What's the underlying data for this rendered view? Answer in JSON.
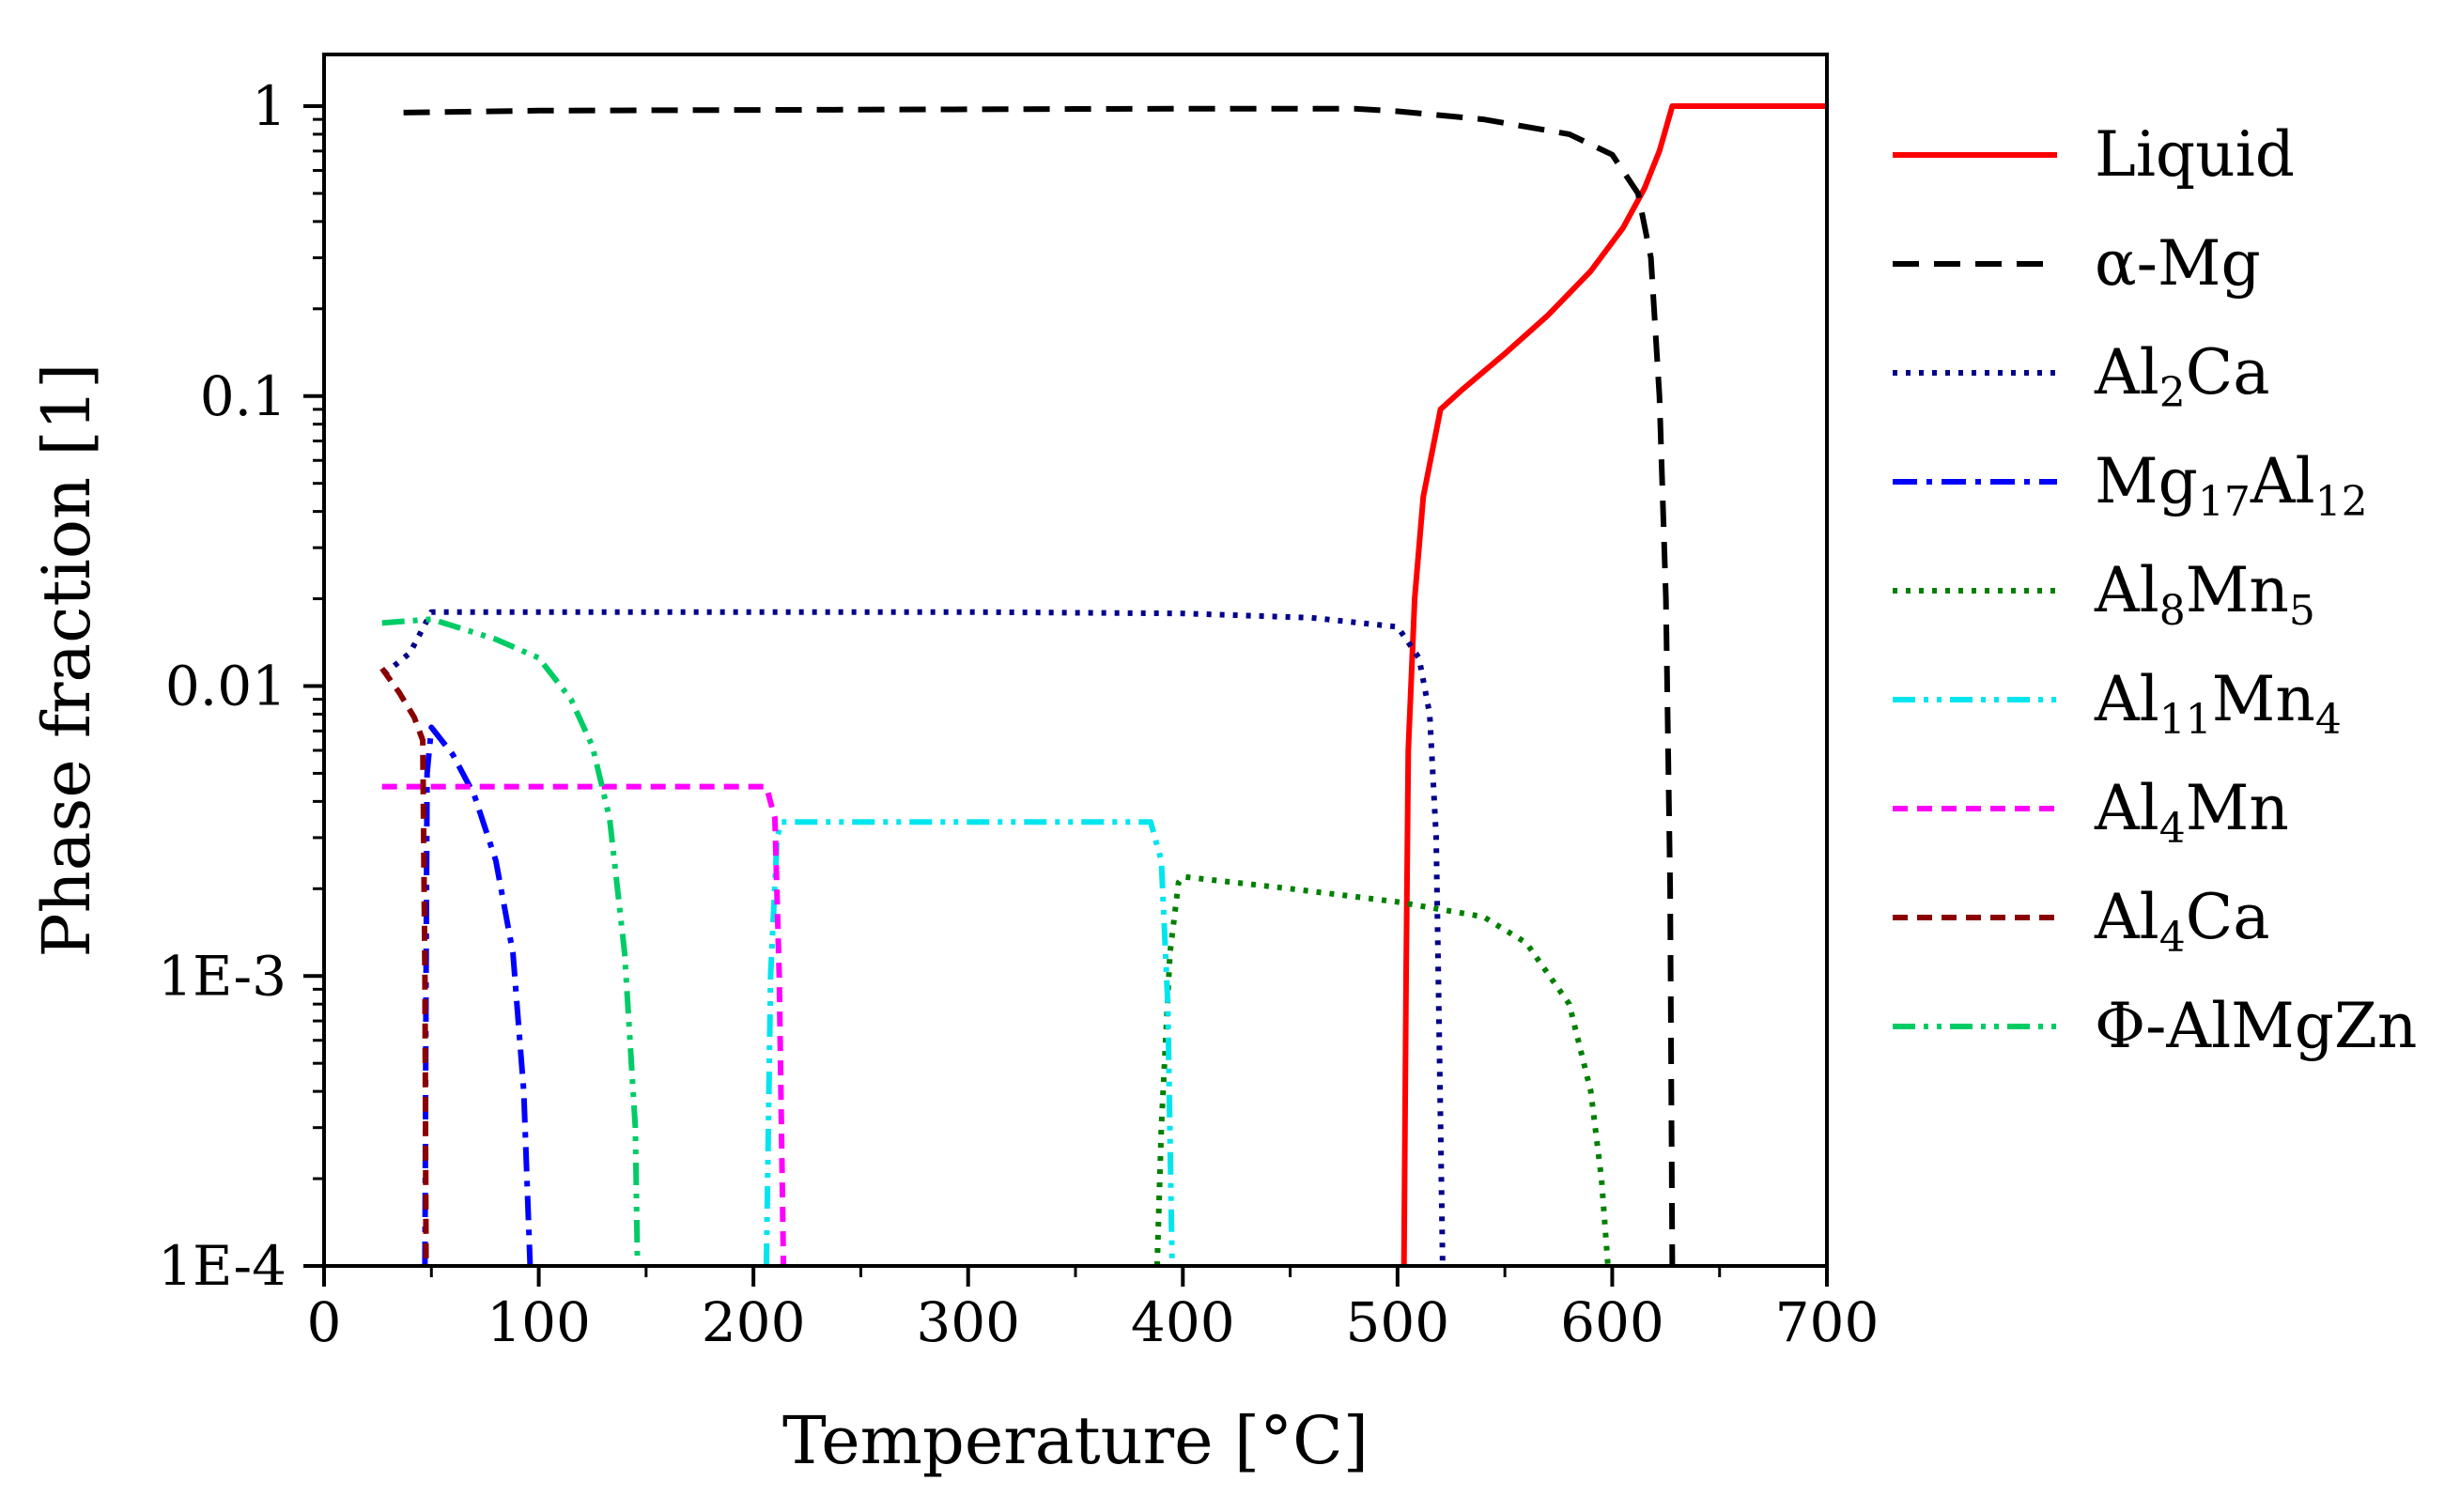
{
  "chart_data": {
    "type": "line",
    "title": "",
    "xlabel": "Temperature [°C]",
    "ylabel": "Phase fraction [1]",
    "xlim": [
      0,
      700
    ],
    "ylim": [
      0.0001,
      1
    ],
    "yscale": "log",
    "x_ticks": [
      0,
      100,
      200,
      300,
      400,
      500,
      600,
      700
    ],
    "x_tick_labels": [
      "0",
      "100",
      "200",
      "300",
      "400",
      "500",
      "600",
      "700"
    ],
    "y_ticks": [
      0.0001,
      0.001,
      0.01,
      0.1,
      1
    ],
    "y_tick_labels": [
      "1E-4",
      "1E-3",
      "0.01",
      "0.1",
      "1"
    ],
    "grid": false,
    "legend_position": "right",
    "series": [
      {
        "name": "Liquid",
        "label_main": [
          "Liquid"
        ],
        "label_sub": [],
        "color": "#ff0000",
        "dash": "solid",
        "points": [
          [
            503,
            0.0001
          ],
          [
            504,
            0.001
          ],
          [
            505,
            0.006
          ],
          [
            508,
            0.02
          ],
          [
            512,
            0.045
          ],
          [
            520,
            0.09
          ],
          [
            530,
            0.105
          ],
          [
            550,
            0.14
          ],
          [
            570,
            0.19
          ],
          [
            590,
            0.27
          ],
          [
            605,
            0.38
          ],
          [
            615,
            0.52
          ],
          [
            622,
            0.7
          ],
          [
            628,
            1
          ],
          [
            700,
            1
          ]
        ]
      },
      {
        "name": "α-Mg",
        "label_main": [
          "α-Mg"
        ],
        "label_sub": [],
        "color": "#000000",
        "dash": "dash",
        "points": [
          [
            37,
            0.95
          ],
          [
            100,
            0.965
          ],
          [
            200,
            0.97
          ],
          [
            300,
            0.975
          ],
          [
            400,
            0.98
          ],
          [
            480,
            0.98
          ],
          [
            500,
            0.96
          ],
          [
            540,
            0.9
          ],
          [
            580,
            0.8
          ],
          [
            600,
            0.68
          ],
          [
            612,
            0.5
          ],
          [
            618,
            0.3
          ],
          [
            622,
            0.1
          ],
          [
            625,
            0.02
          ],
          [
            627,
            0.002
          ],
          [
            628,
            0.0001
          ]
        ]
      },
      {
        "name": "Al2Ca",
        "label_main": [
          "Al",
          "Ca"
        ],
        "label_sub": [
          "2"
        ],
        "color": "#00008b",
        "dash": "dot",
        "points": [
          [
            28,
            0.011
          ],
          [
            40,
            0.013
          ],
          [
            50,
            0.018
          ],
          [
            100,
            0.018
          ],
          [
            200,
            0.018
          ],
          [
            300,
            0.018
          ],
          [
            400,
            0.0178
          ],
          [
            460,
            0.0172
          ],
          [
            500,
            0.016
          ],
          [
            510,
            0.0125
          ],
          [
            515,
            0.008
          ],
          [
            518,
            0.003
          ],
          [
            519,
            0.001
          ],
          [
            521,
            0.0001
          ]
        ]
      },
      {
        "name": "Mg17Al12",
        "label_main": [
          "Mg",
          "Al"
        ],
        "label_sub": [
          "17",
          "12"
        ],
        "color": "#0000ff",
        "dash": "dashdot",
        "points": [
          [
            47,
            0.0001
          ],
          [
            47.5,
            0.001
          ],
          [
            48,
            0.005
          ],
          [
            50,
            0.0072
          ],
          [
            60,
            0.0058
          ],
          [
            70,
            0.0042
          ],
          [
            80,
            0.0025
          ],
          [
            88,
            0.0012
          ],
          [
            93,
            0.0004
          ],
          [
            96,
            0.0001
          ]
        ]
      },
      {
        "name": "Al8Mn5",
        "label_main": [
          "Al",
          "Mn"
        ],
        "label_sub": [
          "8",
          "5"
        ],
        "color": "#008000",
        "dash": "dot",
        "points": [
          [
            388,
            0.0001
          ],
          [
            390,
            0.0003
          ],
          [
            394,
            0.0012
          ],
          [
            398,
            0.0021
          ],
          [
            400,
            0.0022
          ],
          [
            450,
            0.002
          ],
          [
            500,
            0.0018
          ],
          [
            540,
            0.0016
          ],
          [
            560,
            0.0013
          ],
          [
            580,
            0.0008
          ],
          [
            590,
            0.0004
          ],
          [
            595,
            0.0002
          ],
          [
            598,
            0.0001
          ]
        ]
      },
      {
        "name": "Al11Mn4",
        "label_main": [
          "Al",
          "Mn"
        ],
        "label_sub": [
          "11",
          "4"
        ],
        "color": "#00e5ee",
        "dash": "dashdotdot",
        "points": [
          [
            206,
            0.0001
          ],
          [
            208,
            0.001
          ],
          [
            211,
            0.003
          ],
          [
            213,
            0.0034
          ],
          [
            385,
            0.0034
          ],
          [
            390,
            0.0025
          ],
          [
            393,
            0.0008
          ],
          [
            395,
            0.0001
          ]
        ]
      },
      {
        "name": "Al4Mn",
        "label_main": [
          "Al",
          "Mn"
        ],
        "label_sub": [
          "4"
        ],
        "color": "#ff00ff",
        "dash": "shortdash",
        "points": [
          [
            27,
            0.0045
          ],
          [
            100,
            0.0045
          ],
          [
            206,
            0.0045
          ],
          [
            210,
            0.0035
          ],
          [
            212,
            0.001
          ],
          [
            214,
            0.0001
          ]
        ]
      },
      {
        "name": "Al4Ca",
        "label_main": [
          "Al",
          "Ca"
        ],
        "label_sub": [
          "4"
        ],
        "color": "#8b0000",
        "dash": "shortdash",
        "points": [
          [
            27,
            0.0115
          ],
          [
            35,
            0.0095
          ],
          [
            42,
            0.0078
          ],
          [
            46,
            0.0065
          ],
          [
            47,
            0.001
          ],
          [
            47.5,
            0.0001
          ]
        ]
      },
      {
        "name": "Φ-AlMgZn",
        "label_main": [
          "Φ-AlMgZn"
        ],
        "label_sub": [],
        "color": "#00cc66",
        "dash": "dashdotdot",
        "points": [
          [
            27,
            0.0165
          ],
          [
            50,
            0.017
          ],
          [
            80,
            0.0145
          ],
          [
            100,
            0.0125
          ],
          [
            115,
            0.009
          ],
          [
            125,
            0.0062
          ],
          [
            133,
            0.0035
          ],
          [
            140,
            0.0012
          ],
          [
            145,
            0.0003
          ],
          [
            146,
            0.0001
          ]
        ]
      }
    ]
  }
}
